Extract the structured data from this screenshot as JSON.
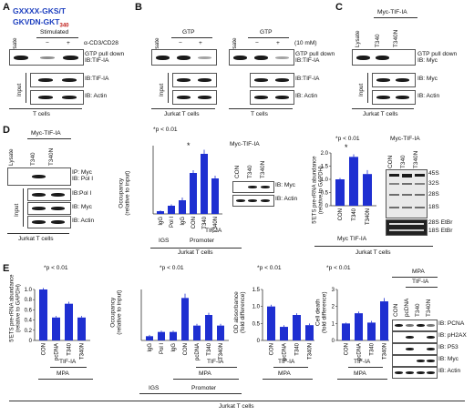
{
  "panelA": {
    "letter": "A",
    "motif_line1": "GXXXX-GKS/T",
    "motif_line2": "GKVDN-GKT",
    "motif_sub": "340",
    "stimulated": "Stimulated",
    "stim_reagent": "α-CD3/CD28",
    "lanes": [
      "Lysate",
      "−",
      "+"
    ],
    "blots": [
      "GTP pull down\nIB:TIF-IA",
      "IB:TIF-IA",
      "IB: Actin"
    ],
    "input": "Input",
    "cells": "T cells"
  },
  "panelB": {
    "letter": "B",
    "gtp": "GTP",
    "lanes": [
      "Lysate",
      "−",
      "+"
    ],
    "conc": "(10 mM)",
    "blots": [
      "GTP pull down\nIB:TIF-IA",
      "IB:TIF-IA",
      "IB: Actin"
    ],
    "input": "Input",
    "cells_left": "Jurkat T cells",
    "cells_right": "T cells"
  },
  "panelC": {
    "letter": "C",
    "construct": "Myc-TIF-IA",
    "lanes": [
      "Lysate",
      "T340",
      "T340N"
    ],
    "blots": [
      "GTP pull down\nIB: Myc",
      "IB: Myc",
      "IB: Actin"
    ],
    "input": "Input",
    "cells": "Jurkat T cells"
  },
  "panelD": {
    "letter": "D",
    "blot": {
      "construct": "Myc-TIF-IA",
      "lanes": [
        "Lysate",
        "T340",
        "T340N"
      ],
      "blots": [
        "IP: Myc\nIB: Pol I",
        "IB:Pol I",
        "IB: Myc",
        "IB: Actin"
      ],
      "input": "Input",
      "cells": "Jurkat T cells"
    },
    "chip": {
      "pval": "*p < 0.01",
      "star": "*",
      "ylabel": "Occupancy\n(relative to input)",
      "categories": [
        "IgG",
        "Pol I",
        "IgG",
        "CON",
        "T340",
        "T340N"
      ],
      "group_igs": "IGS",
      "group_promoter": "Promoter",
      "tif": "TIF-IA",
      "cells": "Jurkat T cells",
      "inset_title": "Myc-TIF-IA",
      "inset_lanes": [
        "CON",
        "T340",
        "T340N"
      ],
      "inset_blots": [
        "IB: Myc",
        "IB: Actin"
      ]
    },
    "rrna": {
      "pval": "*p < 0.01",
      "star": "*",
      "ylabel": "5'ETS pre-rRNA abundance\n(relative to GAPDH)",
      "yticks": [
        "0",
        "0.5",
        "1.0",
        "1.5",
        "2.0"
      ],
      "categories": [
        "CON",
        "T340",
        "T340N"
      ],
      "construct": "Myc TIF-IA",
      "cells": "Jurkat T cells",
      "gel_title": "Myc-TIF-IA",
      "gel_lanes": [
        "CON",
        "T340",
        "T340N"
      ],
      "gel_bands": [
        "45S",
        "32S",
        "28S",
        "18S",
        "28S EtBr",
        "18S EtBr"
      ]
    }
  },
  "panelE": {
    "letter": "E",
    "common": {
      "pval": "*p < 0.01",
      "star": "*",
      "tif": "TIF-IA",
      "mpa": "MPA",
      "cells": "Jurkat T cells"
    },
    "e1": {
      "ylabel": "5'ETS pre-rRNA abundance\n(relative to GAPDH)",
      "yticks": [
        "0",
        "0.2",
        "0.4",
        "0.6",
        "0.8",
        "1.0"
      ],
      "categories": [
        "CON",
        "pcDNA",
        "T340",
        "T340N"
      ]
    },
    "e2": {
      "ylabel": "Occupancy\n(relative to input)",
      "categories": [
        "IgG",
        "Pol I",
        "IgG",
        "CON",
        "pcDNA",
        "T340",
        "T340N"
      ],
      "group_igs": "IGS",
      "group_promoter": "Promoter"
    },
    "e3": {
      "ylabel": "OD absorbance\n(fold difference)",
      "yticks": [
        "0",
        "0.5",
        "1.0",
        "1.5"
      ],
      "categories": [
        "CON",
        "pcDNA",
        "T340",
        "T340N"
      ]
    },
    "e4": {
      "ylabel": "Cell death\n(fold difference)",
      "yticks": [
        "0",
        "1",
        "2",
        "3"
      ],
      "categories": [
        "CON",
        "pcDNA",
        "T340",
        "T340N"
      ]
    },
    "blot": {
      "lanes": [
        "CON",
        "pcDNA",
        "T340",
        "T340N"
      ],
      "blots": [
        "IB: PCNA",
        "IB: pH2AX",
        "IB: P53",
        "IB: Myc",
        "IB: Actin"
      ]
    }
  },
  "chart_data": [
    {
      "id": "D-chip",
      "type": "bar",
      "categories": [
        "IgG",
        "Pol I",
        "IgG",
        "CON",
        "T340",
        "T340N"
      ],
      "values": [
        0.1,
        0.3,
        0.5,
        1.5,
        2.2,
        1.3
      ],
      "errors": [
        0.03,
        0.05,
        0.1,
        0.1,
        0.15,
        0.1
      ],
      "ylim": [
        0,
        2.5
      ],
      "color": "#1e2fd1"
    },
    {
      "id": "D-rRNA",
      "type": "bar",
      "categories": [
        "CON",
        "T340",
        "T340N"
      ],
      "values": [
        1.0,
        1.85,
        1.2
      ],
      "errors": [
        0.05,
        0.1,
        0.15
      ],
      "ylim": [
        0,
        2.0
      ],
      "color": "#1e2fd1"
    },
    {
      "id": "E1",
      "type": "bar",
      "categories": [
        "CON",
        "pcDNA",
        "T340",
        "T340N"
      ],
      "values": [
        1.0,
        0.45,
        0.72,
        0.45
      ],
      "errors": [
        0.03,
        0.03,
        0.04,
        0.03
      ],
      "ylim": [
        0,
        1.0
      ],
      "color": "#1e2fd1"
    },
    {
      "id": "E2",
      "type": "bar",
      "categories": [
        "IgG",
        "Pol I",
        "IgG",
        "CON",
        "pcDNA",
        "T340",
        "T340N"
      ],
      "values": [
        0.1,
        0.2,
        0.2,
        1.0,
        0.35,
        0.6,
        0.35
      ],
      "errors": [
        0.03,
        0.03,
        0.03,
        0.1,
        0.04,
        0.05,
        0.04
      ],
      "ylim": [
        0,
        1.2
      ],
      "color": "#1e2fd1"
    },
    {
      "id": "E3",
      "type": "bar",
      "categories": [
        "CON",
        "pcDNA",
        "T340",
        "T340N"
      ],
      "values": [
        1.0,
        0.4,
        0.75,
        0.45
      ],
      "errors": [
        0.05,
        0.05,
        0.05,
        0.05
      ],
      "ylim": [
        0,
        1.5
      ],
      "color": "#1e2fd1"
    },
    {
      "id": "E4",
      "type": "bar",
      "categories": [
        "CON",
        "pcDNA",
        "T340",
        "T340N"
      ],
      "values": [
        1.0,
        1.6,
        1.05,
        2.3
      ],
      "errors": [
        0.05,
        0.1,
        0.1,
        0.2
      ],
      "ylim": [
        0,
        3
      ],
      "color": "#1e2fd1"
    }
  ]
}
